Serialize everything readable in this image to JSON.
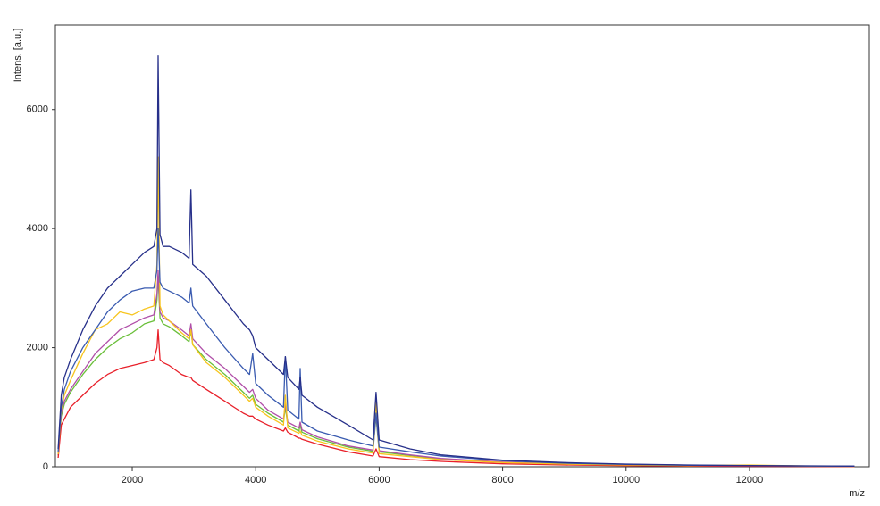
{
  "chart_data": {
    "type": "line",
    "x_label": "m/z",
    "y_label": "Intens. [a.u.]",
    "x": [
      800,
      850,
      900,
      1000,
      1200,
      1400,
      1600,
      1800,
      2000,
      2200,
      2350,
      2400,
      2420,
      2450,
      2500,
      2600,
      2800,
      2920,
      2950,
      2980,
      3200,
      3500,
      3800,
      3900,
      3950,
      4000,
      4200,
      4450,
      4480,
      4520,
      4700,
      4720,
      4750,
      5000,
      5500,
      5900,
      5950,
      6000,
      6500,
      7000,
      8000,
      9000,
      10000,
      11000,
      12000,
      13000,
      13700
    ],
    "series": [
      {
        "color": "#6abf3a",
        "values": [
          190,
          850,
          1050,
          1250,
          1550,
          1800,
          2000,
          2150,
          2250,
          2400,
          2450,
          2800,
          3200,
          2500,
          2400,
          2350,
          2200,
          2100,
          2300,
          2050,
          1800,
          1550,
          1250,
          1150,
          1200,
          1050,
          900,
          750,
          1000,
          700,
          600,
          700,
          580,
          470,
          330,
          260,
          850,
          250,
          190,
          130,
          75,
          45,
          30,
          20,
          14,
          9,
          7
        ]
      },
      {
        "color": "#b04fa8",
        "values": [
          200,
          900,
          1100,
          1300,
          1600,
          1900,
          2100,
          2300,
          2400,
          2500,
          2550,
          2900,
          3300,
          2600,
          2500,
          2450,
          2300,
          2200,
          2400,
          2150,
          1900,
          1650,
          1350,
          1250,
          1300,
          1150,
          950,
          800,
          1050,
          750,
          650,
          750,
          620,
          500,
          350,
          280,
          900,
          270,
          200,
          140,
          80,
          50,
          35,
          22,
          15,
          10,
          8
        ]
      },
      {
        "color": "#e8202a",
        "values": [
          150,
          700,
          800,
          1000,
          1200,
          1400,
          1550,
          1650,
          1700,
          1750,
          1800,
          2000,
          2300,
          1800,
          1750,
          1700,
          1550,
          1500,
          1500,
          1450,
          1300,
          1100,
          900,
          850,
          850,
          800,
          700,
          600,
          650,
          580,
          480,
          480,
          460,
          380,
          250,
          180,
          300,
          170,
          120,
          90,
          50,
          30,
          20,
          12,
          8,
          5,
          4
        ]
      },
      {
        "color": "#f7c51e",
        "values": [
          210,
          950,
          1200,
          1450,
          1900,
          2300,
          2400,
          2600,
          2550,
          2650,
          2700,
          3400,
          5200,
          2700,
          2550,
          2450,
          2250,
          2150,
          2300,
          2050,
          1750,
          1500,
          1200,
          1100,
          1150,
          1000,
          850,
          700,
          1200,
          650,
          560,
          600,
          530,
          430,
          300,
          230,
          1100,
          220,
          170,
          120,
          70,
          45,
          30,
          20,
          30,
          10,
          8
        ]
      },
      {
        "color": "#3a5bb0",
        "values": [
          250,
          1000,
          1300,
          1600,
          2000,
          2300,
          2600,
          2800,
          2950,
          3000,
          3000,
          3300,
          4000,
          3100,
          3000,
          2950,
          2850,
          2750,
          3000,
          2700,
          2400,
          2000,
          1650,
          1550,
          1900,
          1400,
          1200,
          1000,
          1850,
          950,
          800,
          1650,
          750,
          600,
          450,
          350,
          900,
          330,
          250,
          180,
          100,
          60,
          40,
          25,
          18,
          12,
          10
        ]
      },
      {
        "color": "#27308a",
        "values": [
          300,
          1200,
          1500,
          1800,
          2300,
          2700,
          3000,
          3200,
          3400,
          3600,
          3700,
          4000,
          6900,
          3900,
          3700,
          3700,
          3600,
          3500,
          4650,
          3400,
          3200,
          2800,
          2400,
          2300,
          2200,
          2000,
          1800,
          1550,
          1850,
          1500,
          1300,
          1500,
          1200,
          1000,
          700,
          450,
          1250,
          450,
          300,
          200,
          110,
          70,
          45,
          30,
          20,
          15,
          10
        ]
      }
    ],
    "xlim": [
      755,
      13940
    ],
    "ylim": [
      0,
      7420
    ],
    "xticks": [
      2000,
      4000,
      6000,
      8000,
      10000,
      12000
    ],
    "yticks": [
      0,
      2000,
      4000,
      6000
    ]
  }
}
